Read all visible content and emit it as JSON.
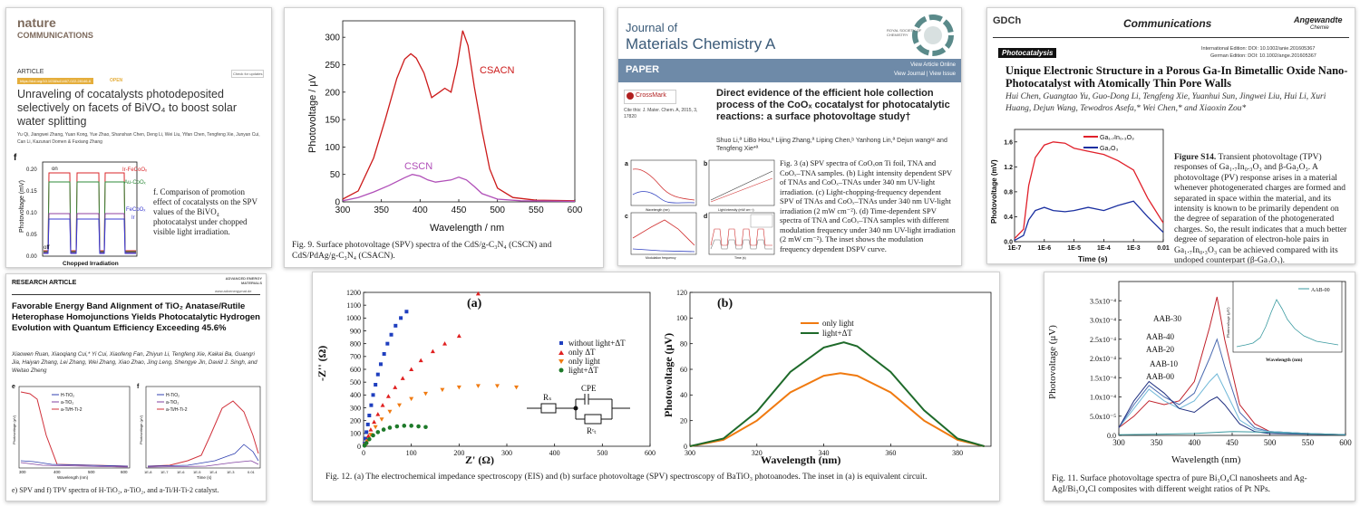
{
  "card1": {
    "logo_top": "nature",
    "logo_bottom": "COMMUNICATIONS",
    "section": "ARTICLE",
    "doi": "https://doi.org/10.1038/s41467-022-28146-6",
    "open": "OPEN",
    "check_updates": "Check for updates",
    "title": "Unraveling of cocatalysts photodeposited selectively on facets of BiVO₄ to boost solar water splitting",
    "authors": "Yu Qi, Jiangwei Zhang, Yuan Kong, Yue Zhao, Shanshan Chen, Deng Li, Wei Liu, Yifan Chen, Tengfeng Xie, Junyan Cui, Can Li, Kazunari Domen & Fuxiang Zhang",
    "panel_letter": "f",
    "ylabel": "Photovoltage (mV)",
    "xlabel": "Chopped Irradiation",
    "y_ticks": [
      "0.20",
      "0.15",
      "0.10",
      "0.05",
      "0.00"
    ],
    "on_label": "on",
    "off_label": "off",
    "series_labels": [
      "Ir-FeCoOₓ",
      "Au-CoOₓ",
      "FeCoOₓ",
      "Ir"
    ],
    "caption": "f. Comparison of promotion effect of cocatalysts on the SPV values of the BiVO₄ photocatalyst under chopped visible light irradiation.",
    "colors": {
      "red": "#d9262a",
      "green": "#2e8b3a",
      "blue": "#3a3ad0",
      "purple": "#9040a0"
    }
  },
  "card2": {
    "chart_data": {
      "type": "line",
      "title": "",
      "xlabel": "Wavelength / nm",
      "ylabel": "Photovoltage / μV",
      "xlim": [
        300,
        600
      ],
      "ylim": [
        0,
        330
      ],
      "x_ticks": [
        300,
        350,
        400,
        450,
        500,
        550,
        600
      ],
      "y_ticks": [
        0,
        50,
        100,
        150,
        200,
        250,
        300
      ],
      "series": [
        {
          "name": "CSACN",
          "color": "#cc1a1a",
          "x": [
            300,
            320,
            340,
            355,
            370,
            380,
            388,
            395,
            405,
            415,
            425,
            432,
            440,
            448,
            455,
            462,
            470,
            480,
            490,
            500,
            520,
            550,
            600
          ],
          "y": [
            5,
            20,
            80,
            150,
            225,
            260,
            270,
            262,
            235,
            190,
            200,
            207,
            200,
            250,
            312,
            285,
            210,
            130,
            60,
            25,
            8,
            3,
            2
          ]
        },
        {
          "name": "CSCN",
          "color": "#b04fb8",
          "x": [
            300,
            320,
            340,
            360,
            380,
            390,
            400,
            410,
            420,
            430,
            440,
            450,
            460,
            470,
            480,
            500,
            530,
            600
          ],
          "y": [
            2,
            8,
            18,
            30,
            44,
            50,
            47,
            40,
            36,
            38,
            40,
            45,
            40,
            28,
            15,
            5,
            2,
            1
          ]
        }
      ]
    },
    "caption": "Fig. 9. Surface photovoltage (SPV) spectra of the CdS/g-C₃N₄ (CSCN) and CdS/PdAg/g-C₃N₄ (CSACN)."
  },
  "card3": {
    "journal_line1": "Journal of",
    "journal_line2": "Materials Chemistry A",
    "rsc": "ROYAL SOCIETY OF CHEMISTRY",
    "paper": "PAPER",
    "view_online": "View Article Online",
    "view_issue": "View Journal | View Issue",
    "crossmark": "CrossMark",
    "cite": "Cite this: J. Mater. Chem. A, 2015, 3, 17820",
    "title": "Direct evidence of the efficient hole collection process of the CoOₓ cocatalyst for photocatalytic reactions: a surface photovoltage study†",
    "authors": "Shuo Li,ª LiBo Hou,ª Lijing Zhang,ª Liping Chen,ᵇ Yanhong Lin,ª Dejun wangᵃᶜ and Tengfeng Xie*ª",
    "caption": "Fig. 3 (a) SPV spectra of CoOₓon Ti foil, TNA and CoOₓ–TNA samples. (b) Light intensity dependent SPV of TNAs and CoOₓ–TNAs under 340 nm UV-light irradiation. (c) Light-chopping-frequency dependent SPV of TNAs and CoOₓ–TNAs under 340 nm UV-light irradiation (2 mW cm⁻²). (d) Time-dependent SPV spectra of TNA and CoOₓ–TNA samples with different modulation frequency under 340 nm UV-light irradiation (2 mW cm⁻²). The inset shows the modulation frequency dependent DSPV curve.",
    "panels": [
      "a",
      "b",
      "c",
      "d"
    ],
    "panel_a_x": "Wavelength (nm)",
    "panel_b_x": "Light intensity (mW cm⁻²)",
    "panel_c_x": "Modulation frequency",
    "panel_d_x": "Time (s)"
  },
  "card4": {
    "gdch": "GDCh",
    "header": "Communications",
    "journal": "Angewandte",
    "journal_sub": "Chemie",
    "tag": "Photocatalysis",
    "doi_intl": "International Edition: DOI: 10.1002/anie.201605367",
    "doi_german": "German Edition: DOI: 10.1002/ange.201605367",
    "title": "Unique Electronic Structure in a Porous Ga-In Bimetallic Oxide Nano-Photocatalyst with Atomically Thin Pore Walls",
    "authors": "Hui Chen, Guangtao Yu, Guo-Dong Li, Tengfeng Xie, Yuanhui Sun, Jingwei Liu, Hui Li, Xuri Huang, Dejun Wang, Tewodros Asefa,* Wei Chen,* and Xiaoxin Zou*",
    "chart_data": {
      "type": "line",
      "xlabel": "Time (s)",
      "ylabel": "Photovoltage (mV)",
      "x_scale": "log",
      "xlim": [
        1e-07,
        0.01
      ],
      "ylim": [
        0,
        1.8
      ],
      "x_ticks": [
        "1E-7",
        "1E-6",
        "1E-5",
        "1E-4",
        "1E-3",
        "0.01"
      ],
      "y_ticks": [
        "0.0",
        "0.4",
        "0.8",
        "1.2",
        "1.6"
      ],
      "series": [
        {
          "name": "Ga₁.₇In₀.₃O₃",
          "color": "#e0202a",
          "x": [
            1e-07,
            2e-07,
            3e-07,
            5e-07,
            1e-06,
            2e-06,
            5e-06,
            1e-05,
            3e-05,
            0.0001,
            0.0003,
            0.001,
            0.003,
            0.01
          ],
          "y": [
            0.05,
            0.2,
            0.9,
            1.35,
            1.55,
            1.6,
            1.58,
            1.5,
            1.45,
            1.4,
            1.3,
            1.15,
            0.7,
            0.3
          ]
        },
        {
          "name": "Ga₂O₃",
          "color": "#1a2fa0",
          "x": [
            1e-07,
            2e-07,
            3e-07,
            5e-07,
            1e-06,
            2e-06,
            5e-06,
            1e-05,
            3e-05,
            0.0001,
            0.0003,
            0.001,
            0.003,
            0.01
          ],
          "y": [
            0.02,
            0.1,
            0.35,
            0.5,
            0.55,
            0.5,
            0.48,
            0.5,
            0.55,
            0.5,
            0.58,
            0.65,
            0.4,
            0.15
          ]
        }
      ]
    },
    "fig_label": "Figure S14.",
    "caption": "Transient photovoltage (TPV) responses of Ga₁.₇In₀.₃O₃ and β-Ga₂O₃. A photovoltage (PV) response arises in a material whenever photogenerated charges are formed and separated in space within the material, and its intensity is known to be primarily dependent on the degree of separation of the photogenerated charges. So, the result indicates that a much better degree of separation of electron-hole pairs in Ga₁.₇In₀.₃O₃ can be achieved compared with its undoped counterpart (β-Ga₂O₃)."
  },
  "card5": {
    "section": "RESEARCH ARTICLE",
    "journal": "ADVANCED ENERGY MATERIALS",
    "url": "www.advenergymat.de",
    "title": "Favorable Energy Band Alignment of TiO₂ Anatase/Rutile Heterophase Homojunctions Yields Photocatalytic Hydrogen Evolution with Quantum Efficiency Exceeding 45.6%",
    "authors": "Xiaowen Ruan, Xiaoqiang Cui,* Yi Cui, Xiaofeng Fan, Zhiyun Li, Tengfeng Xie, Kaikai Ba, Guangri Jia, Haiyan Zhang, Lei Zhang, Wei Zhang, Xiao Zhao, Jing Leng, Shengye Jin, David J. Singh, and Weitao Zheng",
    "panel_e": "e",
    "panel_f": "f",
    "legend": [
      "H-TiO₂",
      "a-TiO₂",
      "a-Ti/H-Ti-2"
    ],
    "e_xlabel": "Wavelength (nm)",
    "f_xlabel": "Time (s)",
    "e_ylabel": "Photovoltage (μV)",
    "f_ylabel": "Photovoltage (μV)",
    "e_x_ticks": [
      "300",
      "400",
      "500",
      "600"
    ],
    "f_x_ticks": [
      "1E-8",
      "1E-7",
      "1E-6",
      "1E-5",
      "1E-4",
      "1E-3",
      "0.01"
    ],
    "caption": "e) SPV and f) TPV spectra of H-TiO₂, a-TiO₂, and a-Ti/H-Ti-2 catalyst."
  },
  "card6": {
    "chart_a": {
      "chart_data": {
        "type": "scatter",
        "title": "(a)",
        "xlabel": "Z' (Ω)",
        "ylabel": "-Z'' (Ω)",
        "xlim": [
          0,
          600
        ],
        "ylim": [
          0,
          1200
        ],
        "x_ticks": [
          0,
          100,
          200,
          300,
          400,
          500,
          600
        ],
        "y_ticks": [
          0,
          100,
          200,
          300,
          400,
          500,
          600,
          700,
          800,
          900,
          1000,
          1100,
          1200
        ],
        "series": [
          {
            "name": "without light+ΔT",
            "color": "#1f3fbf",
            "marker": "square",
            "x": [
              2,
              4,
              6,
              9,
              12,
              16,
              20,
              25,
              30,
              36,
              43,
              50,
              58,
              67,
              78,
              90
            ],
            "y": [
              20,
              60,
              110,
              170,
              240,
              320,
              400,
              480,
              560,
              640,
              720,
              800,
              870,
              940,
              1000,
              1050
            ]
          },
          {
            "name": "only ΔT",
            "color": "#e02020",
            "marker": "triangle",
            "x": [
              3,
              6,
              10,
              15,
              22,
              30,
              40,
              52,
              66,
              82,
              100,
              120,
              145,
              170,
              200,
              240
            ],
            "y": [
              15,
              40,
              80,
              130,
              190,
              250,
              320,
              390,
              460,
              530,
              600,
              670,
              740,
              800,
              860,
              1190
            ]
          },
          {
            "name": "only light",
            "color": "#f07a10",
            "marker": "triangle-down",
            "x": [
              3,
              8,
              15,
              25,
              38,
              55,
              75,
              100,
              130,
              165,
              200,
              240,
              280,
              320
            ],
            "y": [
              10,
              40,
              90,
              150,
              210,
              270,
              320,
              370,
              410,
              440,
              460,
              470,
              470,
              460
            ]
          },
          {
            "name": "light+ΔT",
            "color": "#1e7a2a",
            "marker": "circle",
            "x": [
              2,
              6,
              12,
              20,
              30,
              42,
              55,
              70,
              85,
              100,
              115,
              130
            ],
            "y": [
              5,
              25,
              55,
              85,
              110,
              130,
              145,
              155,
              160,
              160,
              155,
              150
            ]
          }
        ]
      },
      "circuit": {
        "r1": "Rₛ",
        "cpe": "CPE",
        "r2": "Rᶜₜ"
      }
    },
    "chart_b": {
      "chart_data": {
        "type": "line",
        "title": "(b)",
        "xlabel": "Wavelength (nm)",
        "ylabel": "Photovoltage (μV)",
        "xlim": [
          300,
          390
        ],
        "ylim": [
          0,
          120
        ],
        "x_ticks": [
          300,
          320,
          340,
          360,
          380
        ],
        "y_ticks": [
          0,
          20,
          40,
          60,
          80,
          100,
          120
        ],
        "series": [
          {
            "name": "only light",
            "color": "#f07a10",
            "x": [
              300,
              310,
              320,
              330,
              340,
              345,
              350,
              360,
              370,
              380,
              388
            ],
            "y": [
              0,
              5,
              20,
              42,
              55,
              57,
              55,
              42,
              20,
              5,
              0
            ]
          },
          {
            "name": "light+ΔT",
            "color": "#1e6a2a",
            "x": [
              300,
              310,
              320,
              330,
              340,
              346,
              350,
              360,
              370,
              380,
              388
            ],
            "y": [
              0,
              6,
              27,
              58,
              77,
              81,
              78,
              58,
              28,
              6,
              0
            ]
          }
        ]
      }
    },
    "caption": "Fig. 12. (a) The electrochemical impedance spectroscopy (EIS) and (b) surface photovoltage (SPV) spectroscopy of BaTiO₃ photoanodes. The inset in (a) is equivalent circuit."
  },
  "card7": {
    "chart_data": {
      "type": "line",
      "xlabel": "Wavelength (nm)",
      "ylabel": "Photovoltage (μV)",
      "xlim": [
        300,
        600
      ],
      "ylim": [
        0,
        0.0004
      ],
      "x_ticks": [
        300,
        350,
        400,
        450,
        500,
        550,
        600
      ],
      "y_ticks": [
        "0.0",
        "5.0x10⁻⁵",
        "1.0x10⁻⁴",
        "1.5x10⁻⁴",
        "2.0x10⁻⁴",
        "2.5x10⁻⁴",
        "3.0x10⁻⁴",
        "3.5x10⁻⁴"
      ],
      "series": [
        {
          "name": "AAB-30",
          "color": "#c0202a",
          "x": [
            300,
            320,
            340,
            360,
            380,
            400,
            420,
            430,
            440,
            460,
            480,
            500,
            550,
            600
          ],
          "y": [
            0.2,
            0.5,
            0.9,
            0.8,
            0.9,
            1.4,
            2.8,
            3.6,
            2.5,
            0.8,
            0.3,
            0.1,
            0.05,
            0.02
          ]
        },
        {
          "name": "AAB-40",
          "color": "#4a6ab0",
          "x": [
            300,
            320,
            340,
            360,
            380,
            400,
            420,
            430,
            440,
            460,
            480,
            500,
            550,
            600
          ],
          "y": [
            0.2,
            0.8,
            1.3,
            1.0,
            0.8,
            1.1,
            2.0,
            2.5,
            1.8,
            0.6,
            0.2,
            0.1,
            0.05,
            0.02
          ]
        },
        {
          "name": "AAB-20",
          "color": "#70b8d8",
          "x": [
            300,
            320,
            340,
            360,
            380,
            400,
            420,
            430,
            440,
            460,
            480,
            500,
            550,
            600
          ],
          "y": [
            0.2,
            0.7,
            1.2,
            0.9,
            0.7,
            0.9,
            1.4,
            1.6,
            1.2,
            0.4,
            0.15,
            0.1,
            0.05,
            0.02
          ]
        },
        {
          "name": "AAB-10",
          "color": "#203080",
          "x": [
            300,
            320,
            340,
            360,
            380,
            400,
            420,
            430,
            440,
            460,
            480,
            500,
            550,
            600
          ],
          "y": [
            0.2,
            0.9,
            1.4,
            1.1,
            0.7,
            0.6,
            0.9,
            1.0,
            0.8,
            0.3,
            0.1,
            0.05,
            0.03,
            0.02
          ]
        },
        {
          "name": "AAB-00",
          "color": "#3a9aa0",
          "x": [
            300,
            350,
            400,
            450,
            500,
            550,
            600
          ],
          "y": [
            0.02,
            0.03,
            0.05,
            0.1,
            0.08,
            0.04,
            0.02
          ]
        }
      ],
      "y_unit_scale": "x10⁻⁴"
    },
    "inset_legend": "AAB-00",
    "inset_xlabel": "Wavelength (nm)",
    "inset_ylabel": "Photovoltage (μV)",
    "caption": "Fig. 11. Surface photovoltage spectra of pure Bi₃O₄Cl nanosheets and Ag-AgI/Bi₃O₄Cl composites with different weight ratios of Pt NPs."
  }
}
